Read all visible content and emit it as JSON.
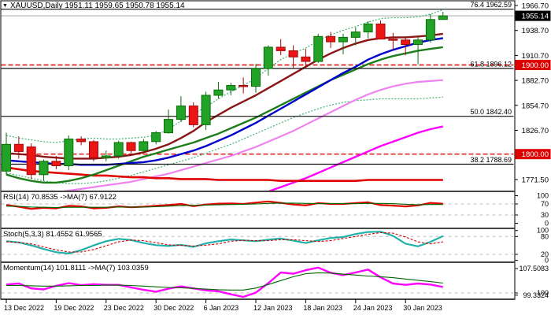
{
  "window": {
    "title": "XAUUSD,Daily  1951.11 1959.65 1950.78 1955.14",
    "symbol": "XAUUSD",
    "timeframe": "Daily",
    "ohlc": {
      "open": 1951.11,
      "high": 1959.65,
      "low": 1950.78,
      "close": 1955.14
    }
  },
  "colors": {
    "bull": "#22A226",
    "bull_border": "#0A6E0A",
    "bear": "#EC1515",
    "bear_border": "#A30A0A",
    "frame": "#444444",
    "grid_dash": "#BBBBBB",
    "badge_black": "#000000",
    "badge_red": "#DE0000",
    "fib_line": "#111111",
    "current_price_line": "#B8B8B8"
  },
  "chart_data": {
    "type": "candlestick",
    "title": "XAUUSD,Daily  1951.11 1959.65 1950.78 1955.14",
    "price_axis": {
      "visible_range": [
        1758,
        1969
      ],
      "ticks": [
        "1966.70",
        "1938.70",
        "1910.70",
        "1882.70",
        "1854.70",
        "1826.70",
        "1771.50"
      ],
      "badges": [
        {
          "text": "1955.14",
          "value": 1955.14,
          "bg": "#000000"
        },
        {
          "text": "1900.00",
          "value": 1900.0,
          "bg": "#DE0000"
        },
        {
          "text": "1800.00",
          "value": 1800.0,
          "bg": "#DE0000"
        }
      ]
    },
    "fib_levels": [
      {
        "label": "76.4 1962.59",
        "price": 1962.59
      },
      {
        "label": "61.8 1896.12",
        "price": 1896.12
      },
      {
        "label": "50.0 1842.40",
        "price": 1842.4
      },
      {
        "label": "38.2 1788.69",
        "price": 1788.69
      }
    ],
    "hlines": [
      {
        "price": 1900.0,
        "color": "#DE0000",
        "dash": "6,3",
        "width": 1.4
      },
      {
        "price": 1800.0,
        "color": "#DE0000",
        "dash": "6,3",
        "width": 1.4
      },
      {
        "price": 1955.14,
        "color": "#B8B8B8",
        "dash": "",
        "width": 1.2
      }
    ],
    "dates": [
      {
        "label": "13 Dec 2022",
        "bar": 0
      },
      {
        "label": "19 Dec 2022",
        "bar": 4
      },
      {
        "label": "23 Dec 2022",
        "bar": 8
      },
      {
        "label": "30 Dec 2022",
        "bar": 12
      },
      {
        "label": "6 Jan 2023",
        "bar": 16
      },
      {
        "label": "12 Jan 2023",
        "bar": 20
      },
      {
        "label": "18 Jan 2023",
        "bar": 24
      },
      {
        "label": "24 Jan 2023",
        "bar": 28
      },
      {
        "label": "30 Jan 2023",
        "bar": 32
      }
    ],
    "candles": [
      [
        1781,
        1824,
        1777,
        1811
      ],
      [
        1811,
        1820,
        1795,
        1803
      ],
      [
        1808,
        1812,
        1772,
        1777
      ],
      [
        1777,
        1794,
        1770,
        1792
      ],
      [
        1792,
        1798,
        1783,
        1787
      ],
      [
        1787,
        1821,
        1782,
        1817
      ],
      [
        1817,
        1820,
        1810,
        1814
      ],
      [
        1814,
        1816,
        1792,
        1796
      ],
      [
        1796,
        1804,
        1792,
        1798
      ],
      [
        1798,
        1815,
        1795,
        1813
      ],
      [
        1813,
        1814,
        1801,
        1804
      ],
      [
        1804,
        1817,
        1802,
        1814
      ],
      [
        1814,
        1826,
        1811,
        1824
      ],
      [
        1824,
        1850,
        1823,
        1839
      ],
      [
        1839,
        1865,
        1836,
        1854
      ],
      [
        1854,
        1858,
        1830,
        1833
      ],
      [
        1833,
        1870,
        1827,
        1866
      ],
      [
        1866,
        1881,
        1862,
        1872
      ],
      [
        1872,
        1880,
        1866,
        1877
      ],
      [
        1877,
        1886,
        1868,
        1876
      ],
      [
        1876,
        1901,
        1869,
        1896
      ],
      [
        1896,
        1922,
        1888,
        1920
      ],
      [
        1920,
        1929,
        1911,
        1916
      ],
      [
        1916,
        1922,
        1896,
        1909
      ],
      [
        1909,
        1918,
        1898,
        1904
      ],
      [
        1904,
        1935,
        1902,
        1932
      ],
      [
        1932,
        1937,
        1919,
        1926
      ],
      [
        1926,
        1935,
        1912,
        1931
      ],
      [
        1931,
        1942,
        1922,
        1937
      ],
      [
        1937,
        1949,
        1930,
        1946
      ],
      [
        1946,
        1950,
        1929,
        1929
      ],
      [
        1929,
        1936,
        1917,
        1928
      ],
      [
        1928,
        1932,
        1911,
        1923
      ],
      [
        1923,
        1932,
        1901,
        1928
      ],
      [
        1928,
        1957,
        1925,
        1951
      ],
      [
        1951.11,
        1959.65,
        1950.78,
        1955.14
      ]
    ],
    "overlays": [
      {
        "name": "band-upper",
        "color": "#3CB371",
        "width": 1.2,
        "dash": "2,2",
        "values": [
          1821,
          1818,
          1816,
          1814,
          1813,
          1815,
          1817,
          1818,
          1817,
          1817,
          1818,
          1819,
          1821,
          1828,
          1837,
          1845,
          1853,
          1862,
          1870,
          1877,
          1885,
          1896,
          1906,
          1913,
          1919,
          1927,
          1934,
          1939,
          1943,
          1948,
          1952,
          1953,
          1953,
          1954,
          1957,
          1962
        ]
      },
      {
        "name": "band-lower",
        "color": "#3CB371",
        "width": 1.2,
        "dash": "2,2",
        "values": [
          1779,
          1776,
          1773,
          1770,
          1768,
          1767,
          1767,
          1768,
          1770,
          1773,
          1776,
          1780,
          1784,
          1788,
          1792,
          1796,
          1801,
          1806,
          1811,
          1817,
          1823,
          1829,
          1835,
          1841,
          1846,
          1851,
          1855,
          1858,
          1860,
          1861,
          1862,
          1862,
          1862,
          1862,
          1863,
          1864
        ]
      },
      {
        "name": "ma-violet",
        "color": "#EE82EE",
        "width": 2.2,
        "dash": "",
        "values": [
          null,
          null,
          null,
          1755,
          1757,
          1759,
          1761,
          1763,
          1765,
          1767,
          1769,
          1772,
          1775,
          1778,
          1782,
          1786,
          1790,
          1794,
          1798,
          1803,
          1808,
          1814,
          1820,
          1826,
          1833,
          1840,
          1847,
          1854,
          1861,
          1867,
          1872,
          1876,
          1879,
          1881,
          1882,
          1883
        ]
      },
      {
        "name": "ma-magenta",
        "color": "#FF00FF",
        "width": 2.4,
        "dash": "",
        "values": [
          null,
          null,
          null,
          null,
          null,
          null,
          null,
          null,
          null,
          null,
          null,
          null,
          null,
          null,
          null,
          null,
          null,
          null,
          null,
          1748,
          1753,
          1758,
          1763,
          1768,
          1773,
          1779,
          1785,
          1791,
          1797,
          1803,
          1809,
          1814,
          1819,
          1824,
          1828,
          1831
        ]
      },
      {
        "name": "ma-red-long",
        "color": "#E00000",
        "width": 2.6,
        "dash": "",
        "values": [
          1785,
          1783,
          1781,
          1780,
          1779,
          1778,
          1777,
          1776,
          1776,
          1775,
          1774,
          1774,
          1773,
          1773,
          1772,
          1772,
          1772,
          1771,
          1771,
          1771,
          1771,
          1771,
          1770,
          1770,
          1770,
          1770,
          1770,
          1770,
          1770,
          1771,
          1771,
          1771,
          1771,
          1771,
          1771,
          1771
        ]
      },
      {
        "name": "ma-green",
        "color": "#1B7E1B",
        "width": 2.4,
        "dash": "",
        "values": [
          1777,
          1773,
          1770,
          1768,
          1768,
          1770,
          1773,
          1777,
          1782,
          1787,
          1792,
          1797,
          1801,
          1805,
          1809,
          1813,
          1818,
          1823,
          1829,
          1835,
          1841,
          1848,
          1855,
          1862,
          1869,
          1876,
          1883,
          1889,
          1895,
          1901,
          1906,
          1910,
          1913,
          1916,
          1918,
          1920
        ]
      },
      {
        "name": "ma-blue",
        "color": "#0000CC",
        "width": 2.4,
        "dash": "",
        "values": [
          1793,
          1792,
          1791,
          1790,
          1789,
          1789,
          1788,
          1788,
          1788,
          1789,
          1790,
          1791,
          1793,
          1796,
          1800,
          1804,
          1809,
          1815,
          1821,
          1828,
          1835,
          1843,
          1851,
          1859,
          1867,
          1875,
          1883,
          1891,
          1898,
          1906,
          1912,
          1917,
          1921,
          1925,
          1928,
          1930
        ]
      },
      {
        "name": "ma-maroon",
        "color": "#8B1515",
        "width": 2.4,
        "dash": "",
        "values": [
          1801,
          1800,
          1799,
          1797,
          1796,
          1795,
          1795,
          1795,
          1796,
          1797,
          1799,
          1802,
          1806,
          1811,
          1818,
          1826,
          1836,
          1844,
          1852,
          1859,
          1866,
          1874,
          1882,
          1890,
          1898,
          1906,
          1913,
          1919,
          1924,
          1928,
          1930,
          1931,
          1931,
          1932,
          1933,
          1935
        ]
      }
    ],
    "indicators": [
      {
        "name": "rsi",
        "label": "RSI(14) 70.8535  ->MA(7) 67.9122",
        "levels": [
          70,
          30
        ],
        "axis_labels": [
          "100",
          "70",
          "30",
          "0"
        ],
        "series": [
          {
            "name": "rsi-line",
            "color": "#E00000",
            "width": 2.2,
            "dash": "",
            "values": [
              66,
              60,
              52,
              56,
              54,
              63,
              61,
              54,
              56,
              61,
              58,
              60,
              63,
              66,
              70,
              62,
              68,
              71,
              72,
              70,
              75,
              79,
              74,
              68,
              65,
              73,
              70,
              70,
              73,
              76,
              66,
              64,
              61,
              65,
              74,
              70.85
            ]
          },
          {
            "name": "rsi-ma",
            "color": "#006600",
            "width": 1.1,
            "dash": "",
            "values": [
              62,
              61,
              59,
              58,
              57,
              58,
              58,
              58,
              58,
              59,
              59,
              59,
              60,
              62,
              64,
              65,
              66,
              67,
              68,
              69,
              70,
              72,
              73,
              73,
              72,
              71,
              71,
              71,
              71,
              72,
              72,
              71,
              69,
              67,
              68,
              67.91
            ]
          }
        ]
      },
      {
        "name": "stochastic",
        "label": "Stoch(5,3,3) 81.4552 61.9565",
        "levels": [
          80,
          20
        ],
        "axis_labels": [
          "100",
          "80",
          "20",
          "0"
        ],
        "series": [
          {
            "name": "stoch-k",
            "color": "#20B2AA",
            "width": 2.2,
            "dash": "",
            "values": [
              64,
              60,
              50,
              38,
              27,
              23,
              34,
              50,
              64,
              72,
              68,
              58,
              51,
              48,
              52,
              45,
              57,
              64,
              70,
              67,
              64,
              69,
              73,
              66,
              58,
              67,
              75,
              78,
              88,
              95,
              96,
              82,
              56,
              47,
              62,
              81.45
            ]
          },
          {
            "name": "stoch-d",
            "color": "#D00000",
            "width": 1.1,
            "dash": "3,2",
            "values": [
              62,
              60,
              55,
              45,
              35,
              28,
              28,
              36,
              49,
              62,
              68,
              66,
              59,
              52,
              50,
              48,
              51,
              55,
              64,
              67,
              66,
              66,
              69,
              69,
              66,
              63,
              66,
              73,
              80,
              87,
              93,
              91,
              78,
              62,
              55,
              61.96
            ]
          }
        ]
      },
      {
        "name": "momentum",
        "label": "Momentum(14) 101.8111  ->MA(7) 103.0359",
        "levels": [
          100
        ],
        "axis_labels": [
          "107.5083",
          "100",
          "99.3324"
        ],
        "series": [
          {
            "name": "momentum-line",
            "color": "#FF00FF",
            "width": 2.4,
            "dash": "",
            "values": [
              102.6,
              102.9,
              101.4,
              101.1,
              102.2,
              103.0,
              102.4,
              102.7,
              102.5,
              102.5,
              101.7,
              101.0,
              100.4,
              101.3,
              102.0,
              101.4,
              100.8,
              100.5,
              99.6,
              98.8,
              100.1,
              103.0,
              106.3,
              105.9,
              107.0,
              107.8,
              106.2,
              105.5,
              106.3,
              107.2,
              104.8,
              102.9,
              102.5,
              102.9,
              102.6,
              101.81
            ]
          },
          {
            "name": "momentum-ma",
            "color": "#006600",
            "width": 1.1,
            "dash": "",
            "values": [
              102.3,
              102.3,
              102.2,
              102.1,
              102.1,
              102.2,
              102.3,
              102.3,
              102.4,
              102.4,
              102.3,
              102.1,
              101.9,
              101.7,
              101.6,
              101.4,
              101.2,
              101.0,
              100.9,
              100.9,
              101.5,
              102.6,
              103.8,
              105.0,
              105.9,
              106.2,
              106.1,
              105.8,
              105.5,
              105.2,
              105.0,
              104.7,
              104.3,
              103.9,
              103.5,
              103.04
            ]
          }
        ]
      }
    ]
  }
}
